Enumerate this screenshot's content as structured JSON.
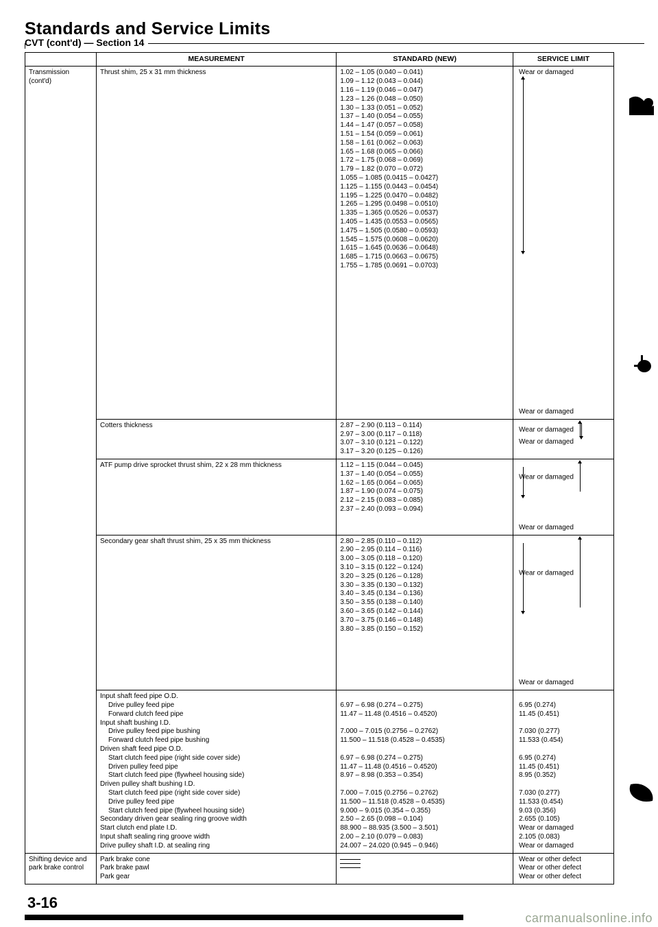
{
  "title": "Standards and Service Limits",
  "section_label": "CVT (cont'd) — Section 14",
  "headers": {
    "measurement": "MEASUREMENT",
    "standard": "STANDARD (NEW)",
    "limit": "SERVICE LIMIT"
  },
  "category_transmission": "Transmission (cont'd)",
  "category_shifting": "Shifting device and park brake control",
  "rows": {
    "thrust_shim": {
      "meas": "Thrust shim, 25 x 31 mm thickness",
      "std": [
        "1.02 – 1.05 (0.040 – 0.041)",
        "1.09 – 1.12 (0.043 – 0.044)",
        "1.16 – 1.19 (0.046 – 0.047)",
        "1.23 – 1.26 (0.048 – 0.050)",
        "1.30 – 1.33 (0.051 – 0.052)",
        "1.37 – 1.40 (0.054 – 0.055)",
        "1.44 – 1.47 (0.057 – 0.058)",
        "1.51 – 1.54 (0.059 – 0.061)",
        "1.58 – 1.61 (0.062 – 0.063)",
        "1.65 – 1.68 (0.065 – 0.066)",
        "1.72 – 1.75 (0.068 – 0.069)",
        "1.79 – 1.82 (0.070 – 0.072)",
        "1.055 – 1.085 (0.0415 – 0.0427)",
        "1.125 – 1.155 (0.0443 – 0.0454)",
        "1.195 – 1.225 (0.0470 – 0.0482)",
        "1.265 – 1.295 (0.0498 – 0.0510)",
        "1.335 – 1.365 (0.0526 – 0.0537)",
        "1.405 – 1.435 (0.0553 – 0.0565)",
        "1.475 – 1.505 (0.0580 – 0.0593)",
        "1.545 – 1.575 (0.0608 – 0.0620)",
        "1.615 – 1.645 (0.0636 – 0.0648)",
        "1.685 – 1.715 (0.0663 – 0.0675)",
        "1.755 – 1.785 (0.0691 – 0.0703)"
      ],
      "limit_top": "Wear or damaged",
      "limit_bottom": "Wear or damaged"
    },
    "cotters": {
      "meas": "Cotters thickness",
      "std": [
        "2.87 – 2.90 (0.113 – 0.114)",
        "2.97 – 3.00 (0.117 – 0.118)",
        "3.07 – 3.10 (0.121 – 0.122)",
        "3.17 – 3.20 (0.125 – 0.126)"
      ],
      "limit_top": "Wear or damaged",
      "limit_bottom": "Wear or damaged"
    },
    "atf_pump": {
      "meas": "ATF pump drive sprocket thrust shim, 22 x 28 mm thickness",
      "std": [
        "1.12 – 1.15 (0.044 – 0.045)",
        "1.37 – 1.40 (0.054 – 0.055)",
        "1.62 – 1.65 (0.064 – 0.065)",
        "1.87 – 1.90 (0.074 – 0.075)",
        "2.12 – 2.15 (0.083 – 0.085)",
        "2.37 – 2.40 (0.093 – 0.094)"
      ],
      "limit_top": "Wear or damaged",
      "limit_bottom": "Wear or damaged"
    },
    "secondary_shaft": {
      "meas": "Secondary gear shaft thrust shim, 25 x 35 mm thickness",
      "std": [
        "2.80 – 2.85 (0.110 – 0.112)",
        "2.90 – 2.95 (0.114 – 0.116)",
        "3.00 – 3.05 (0.118 – 0.120)",
        "3.10 – 3.15 (0.122 – 0.124)",
        "3.20 – 3.25 (0.126 – 0.128)",
        "3.30 – 3.35 (0.130 – 0.132)",
        "3.40 – 3.45 (0.134 – 0.136)",
        "3.50 – 3.55 (0.138 – 0.140)",
        "3.60 – 3.65 (0.142 – 0.144)",
        "3.70 – 3.75 (0.146 – 0.148)",
        "3.80 – 3.85 (0.150 – 0.152)"
      ],
      "limit_top": "Wear or damaged",
      "limit_bottom": "Wear or damaged"
    },
    "shafts_block": {
      "meas": [
        {
          "t": "Input shaft feed pipe O.D.",
          "i": 0
        },
        {
          "t": "Drive pulley feed pipe",
          "i": 1
        },
        {
          "t": "Forward clutch feed pipe",
          "i": 1
        },
        {
          "t": "Input shaft bushing I.D.",
          "i": 0
        },
        {
          "t": "Drive pulley feed pipe bushing",
          "i": 1
        },
        {
          "t": "Forward clutch feed pipe bushing",
          "i": 1
        },
        {
          "t": "Driven shaft feed pipe O.D.",
          "i": 0
        },
        {
          "t": "Start clutch feed pipe (right side cover side)",
          "i": 1
        },
        {
          "t": "Driven pulley feed pipe",
          "i": 1
        },
        {
          "t": "Start clutch feed pipe (flywheel housing side)",
          "i": 1
        },
        {
          "t": "Driven pulley shaft bushing I.D.",
          "i": 0
        },
        {
          "t": "Start clutch feed pipe (right side cover side)",
          "i": 1
        },
        {
          "t": "Drive pulley feed pipe",
          "i": 1
        },
        {
          "t": "Start clutch feed pipe (flywheel housing side)",
          "i": 1
        },
        {
          "t": "Secondary driven gear sealing ring groove width",
          "i": 0
        },
        {
          "t": "Start clutch end plate I.D.",
          "i": 0
        },
        {
          "t": "Input shaft sealing ring groove width",
          "i": 0
        },
        {
          "t": "Drive pulley shaft I.D. at sealing ring",
          "i": 0
        }
      ],
      "std": [
        "",
        "6.97 – 6.98 (0.274 – 0.275)",
        "11.47 – 11.48 (0.4516 – 0.4520)",
        "",
        "7.000 – 7.015 (0.2756 – 0.2762)",
        "11.500 – 11.518 (0.4528 – 0.4535)",
        "",
        "6.97 – 6.98 (0.274 – 0.275)",
        "11.47 – 11.48 (0.4516 – 0.4520)",
        "8.97 – 8.98 (0.353 – 0.354)",
        "",
        "7.000 – 7.015 (0.2756 – 0.2762)",
        "11.500 – 11.518 (0.4528 – 0.4535)",
        "9.000 – 9.015 (0.354 – 0.355)",
        "2.50 – 2.65 (0.098 – 0.104)",
        "88.900 – 88.935 (3.500 – 3.501)",
        "2.00 – 2.10 (0.079 – 0.083)",
        "24.007 – 24.020 (0.945 – 0.946)"
      ],
      "limit": [
        "",
        "6.95 (0.274)",
        "11.45 (0.451)",
        "",
        "7.030 (0.277)",
        "11.533 (0.454)",
        "",
        "6.95 (0.274)",
        "11.45 (0.451)",
        "8.95 (0.352)",
        "",
        "7.030 (0.277)",
        "11.533 (0.454)",
        "9.03 (0.356)",
        "2.655 (0.105)",
        "Wear or damaged",
        "2.105 (0.083)",
        "Wear or damaged"
      ]
    },
    "park": {
      "meas": [
        "Park brake cone",
        "Park brake pawl",
        "Park gear"
      ],
      "limit": [
        "Wear or other defect",
        "Wear or other defect",
        "Wear or other defect"
      ]
    }
  },
  "page_number": "3-16",
  "watermark": "carmanualsonline.info",
  "colors": {
    "text": "#000000",
    "bg": "#ffffff"
  }
}
